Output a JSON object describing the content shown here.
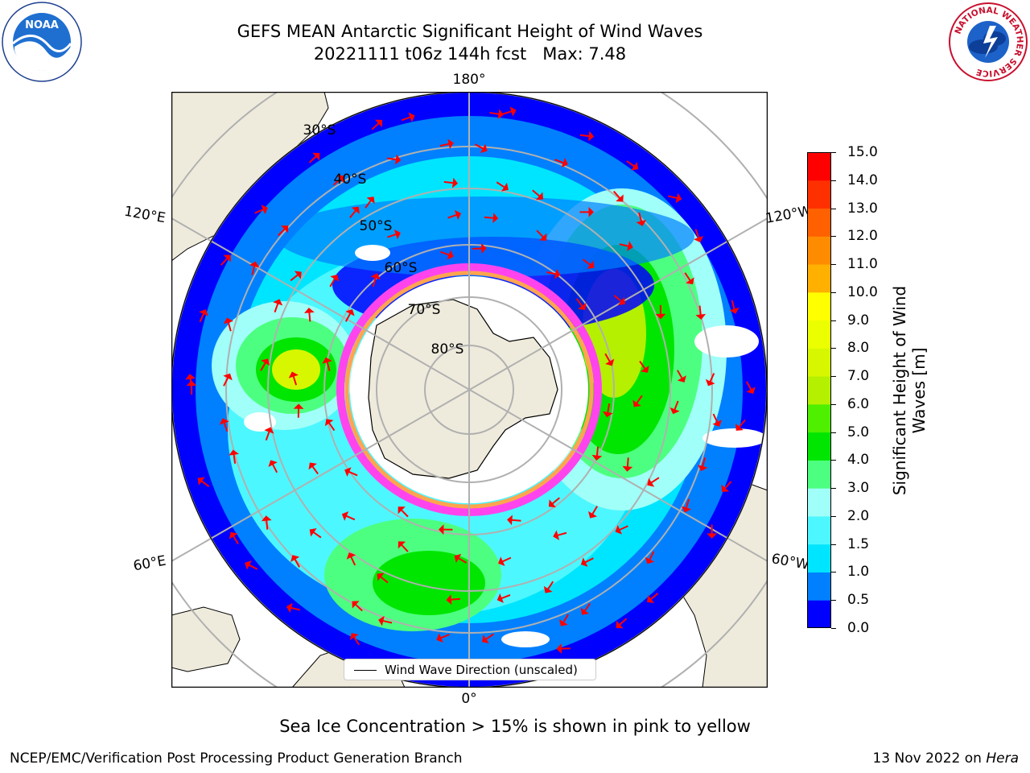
{
  "title": {
    "line1": "GEFS MEAN Antarctic Significant Height of Wind Waves",
    "line2": "20221111 t06z 144h fcst   Max: 7.48"
  },
  "logos": {
    "noaa_icon": "noaa-logo-icon",
    "noaa_text": "NOAA",
    "nws_icon": "national-weather-service-logo-icon",
    "nws_text": "NATIONAL WEATHER SERVICE"
  },
  "map": {
    "projection": "south-polar-stereographic",
    "lon_labels": [
      "180°",
      "120°E",
      "120°W",
      "60°E",
      "60°W",
      "0°"
    ],
    "lat_labels": [
      "30°S",
      "40°S",
      "50°S",
      "60°S",
      "70°S",
      "80°S"
    ],
    "legend_entry": "Wind Wave Direction (unscaled)",
    "arrow_color": "#ff0000",
    "land_color": "#efebdc",
    "ice_colors": [
      "#ff69d9",
      "#ff44ee",
      "#ffa54f",
      "#ffd24f"
    ]
  },
  "colorbar": {
    "label_line1": "Significant Height of Wind",
    "label_line2": "Waves [m]",
    "ticks": [
      "0.0",
      "0.5",
      "1.0",
      "1.5",
      "2.0",
      "3.0",
      "4.0",
      "5.0",
      "6.0",
      "7.0",
      "8.0",
      "9.0",
      "10.0",
      "11.0",
      "12.0",
      "13.0",
      "14.0",
      "15.0"
    ],
    "colors": [
      "#0000ff",
      "#0080ff",
      "#00e5ff",
      "#4df7ff",
      "#a0fff8",
      "#4dff80",
      "#00e600",
      "#4ef000",
      "#b4f000",
      "#d7f700",
      "#ebff00",
      "#ffff00",
      "#ffb000",
      "#ff8c00",
      "#ff6000",
      "#ff3000",
      "#ff0000"
    ]
  },
  "notes": {
    "sea_ice": "Sea Ice Concentration > 15% is shown in pink to yellow",
    "footer_left": "NCEP/EMC/Verification Post Processing Product Generation Branch",
    "footer_date": "13 Nov 2022 on",
    "footer_machine": "Hera"
  }
}
